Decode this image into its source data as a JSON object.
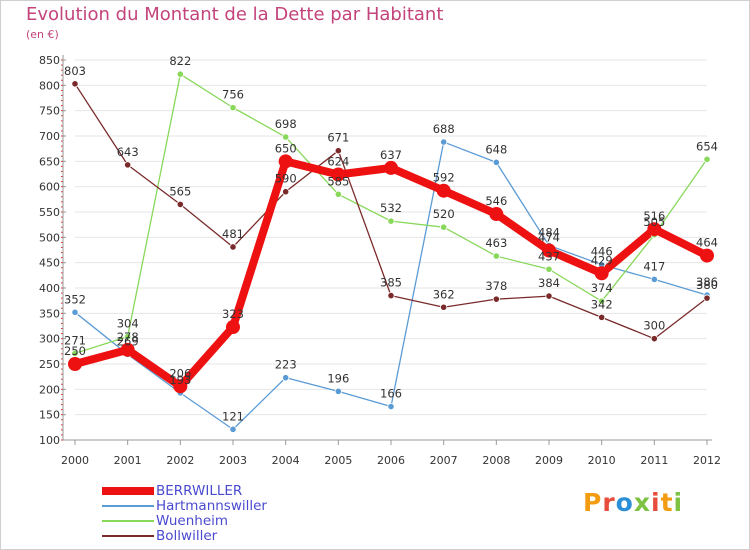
{
  "header": {
    "title": "Evolution du Montant de la Dette par Habitant",
    "subtitle": "(en €)"
  },
  "logo": {
    "text": "Proxiti",
    "colors": [
      "#f39c12",
      "#e74c3c",
      "#2b8fd8",
      "#7dc242",
      "#e74c3c",
      "#f39c12",
      "#7dc242"
    ]
  },
  "chart_data": {
    "type": "line",
    "title": "Evolution du Montant de la Dette par Habitant",
    "subtitle": "(en €)",
    "xlabel": "",
    "ylabel": "",
    "x": [
      "2000",
      "2001",
      "2002",
      "2003",
      "2004",
      "2005",
      "2006",
      "2007",
      "2008",
      "2009",
      "2010",
      "2011",
      "2012"
    ],
    "ylim": [
      100,
      850
    ],
    "yticks": [
      100,
      150,
      200,
      250,
      300,
      350,
      400,
      450,
      500,
      550,
      600,
      650,
      700,
      750,
      800,
      850
    ],
    "grid": "horizontal",
    "legend_position": "bottom-left",
    "series": [
      {
        "name": "BERRWILLER",
        "color": "#ee1111",
        "values": [
          250,
          278,
          206,
          323,
          650,
          624,
          637,
          592,
          546,
          474,
          429,
          516,
          464
        ]
      },
      {
        "name": "Hartmannswiller",
        "color": "#5b9bd5",
        "values": [
          352,
          269,
          193,
          121,
          223,
          196,
          166,
          688,
          648,
          484,
          446,
          417,
          386
        ]
      },
      {
        "name": "Wuenheim",
        "color": "#88d85a",
        "values": [
          271,
          304,
          822,
          756,
          698,
          585,
          532,
          520,
          463,
          437,
          374,
          505,
          654
        ]
      },
      {
        "name": "Bollwiller",
        "color": "#7a2a2a",
        "values": [
          803,
          643,
          565,
          481,
          590,
          671,
          385,
          362,
          378,
          384,
          342,
          300,
          380
        ]
      }
    ]
  }
}
